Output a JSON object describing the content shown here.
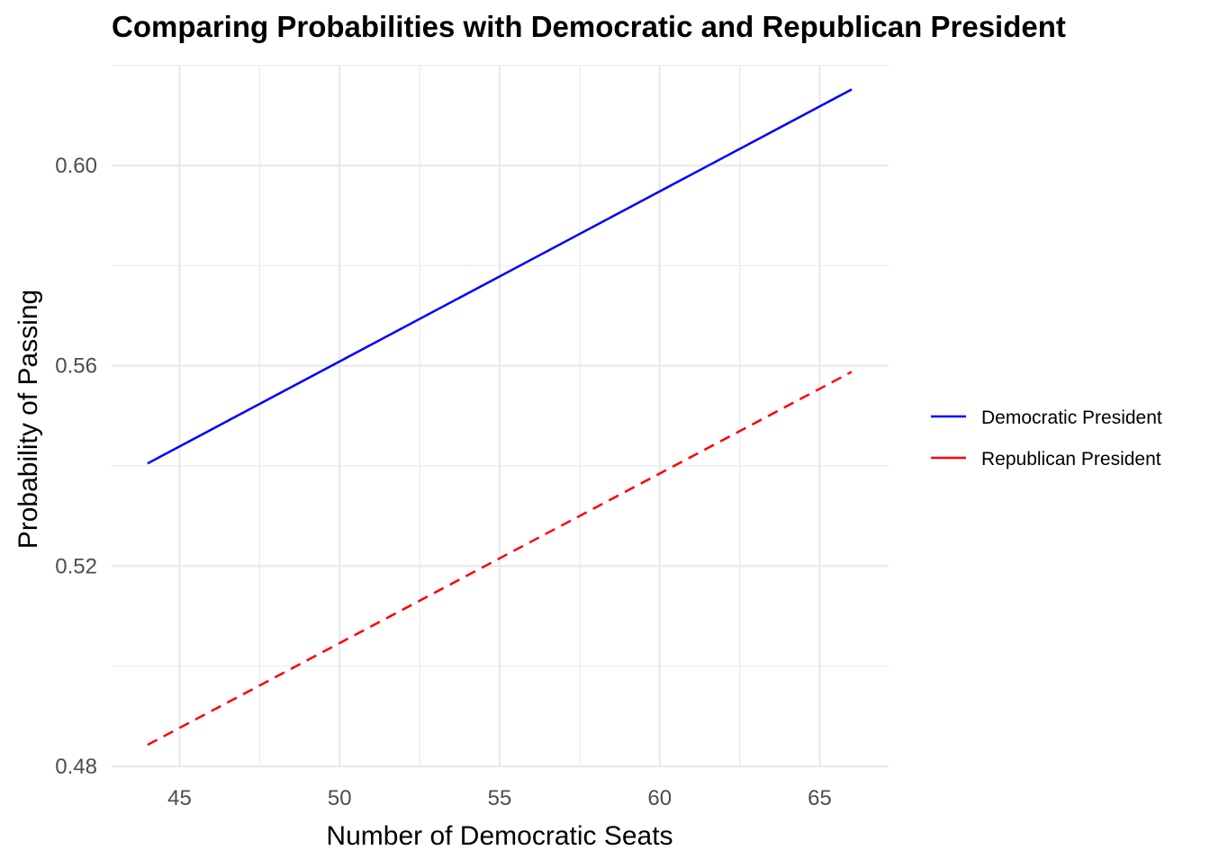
{
  "chart_data": {
    "type": "line",
    "title": "Comparing Probabilities with Democratic and Republican President",
    "xlabel": "Number of Democratic Seats",
    "ylabel": "Probability of Passing",
    "xlim": [
      43,
      67
    ],
    "ylim": [
      0.48,
      0.62
    ],
    "x_ticks": [
      45,
      50,
      55,
      60,
      65
    ],
    "x_tick_labels": [
      "45",
      "50",
      "55",
      "60",
      "65"
    ],
    "y_ticks": [
      0.48,
      0.52,
      0.56,
      0.6
    ],
    "y_tick_labels": [
      "0.48",
      "0.52",
      "0.56",
      "0.60"
    ],
    "grid": true,
    "legend_position": "right",
    "series": [
      {
        "name": "Democratic President",
        "color": "#0000FF",
        "linetype": "solid",
        "x": [
          44,
          66
        ],
        "y": [
          0.5405,
          0.6152
        ]
      },
      {
        "name": "Republican President",
        "color": "#FF0000",
        "linetype": "dashed",
        "x": [
          44,
          66
        ],
        "y": [
          0.4843,
          0.5588
        ]
      }
    ]
  }
}
